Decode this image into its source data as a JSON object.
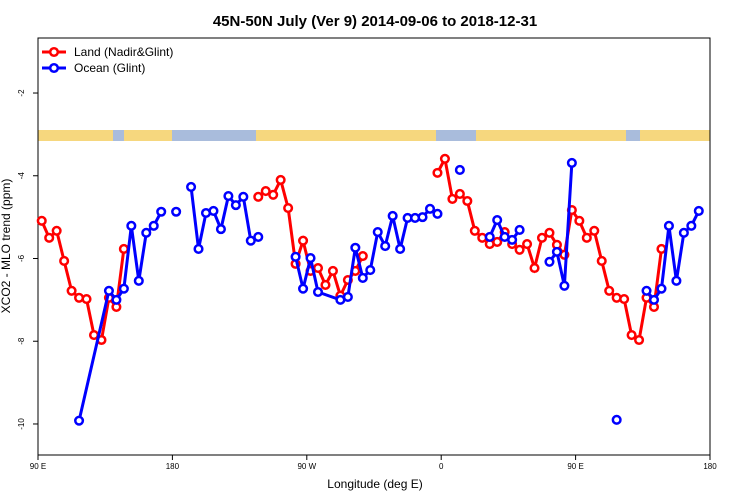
{
  "chart_data": {
    "type": "line",
    "title": "45N-50N July (Ver 9)   2014-09-06 to 2018-12-31",
    "x_label": "Longitude (deg E)",
    "y_label": "XCO2 - MLO trend (ppm)",
    "xlim": [
      90,
      540
    ],
    "ylim": [
      -10.75,
      -0.67
    ],
    "xticks": [
      {
        "value": 90,
        "label": "90 E"
      },
      180,
      {
        "value": 270,
        "label": "90 W"
      },
      {
        "value": 360,
        "label": "0"
      },
      {
        "value": 450,
        "label": "90 E"
      },
      {
        "value": 540,
        "label": "180"
      }
    ],
    "yticks": [
      -2,
      -4,
      -6,
      -8,
      -10
    ],
    "legend": "top-left",
    "series": [
      {
        "name": "Land (Nadir&Glint)",
        "color": "#ff0000",
        "x": [
          92.5,
          97.5,
          102.5,
          107.5,
          112.5,
          117.5,
          122.5,
          127.5,
          132.5,
          137.5,
          142.5,
          147.5,
          null,
          237.5,
          242.5,
          247.5,
          252.5,
          257.5,
          262.5,
          267.5,
          272.5,
          277.5,
          282.5,
          287.5,
          292.5,
          297.5,
          302.5,
          307.5,
          null,
          357.5,
          362.5,
          367.5,
          372.5,
          377.5,
          382.5,
          387.5,
          392.5,
          397.5,
          402.5,
          407.5,
          412.5,
          417.5,
          422.5,
          427.5,
          432.5,
          437.5,
          442.5,
          447.5,
          452.5,
          457.5,
          462.5,
          467.5,
          472.5,
          477.5,
          482.5,
          487.5,
          492.5,
          497.5,
          502.5,
          507.5
        ],
        "values": [
          -5.09,
          -5.5,
          -5.33,
          -6.06,
          -6.78,
          -6.95,
          -6.98,
          -7.85,
          -7.97,
          -6.95,
          -7.17,
          -5.77,
          null,
          -4.51,
          -4.37,
          -4.46,
          -4.1,
          -4.78,
          -6.13,
          -5.57,
          -6.3,
          -6.23,
          -6.64,
          -6.3,
          -6.9,
          -6.52,
          -6.3,
          -5.94,
          null,
          -3.93,
          -3.59,
          -4.56,
          -4.44,
          -4.61,
          -5.33,
          -5.5,
          -5.65,
          -5.6,
          -5.36,
          -5.65,
          -5.79,
          -5.65,
          -6.23,
          -5.5,
          -5.38,
          -5.67,
          -5.91,
          -4.83,
          -5.09,
          -5.5,
          -5.33,
          -6.06,
          -6.78,
          -6.95,
          -6.98,
          -7.85,
          -7.97,
          -6.95,
          -7.17,
          -5.77
        ]
      },
      {
        "name": "Ocean (Glint)",
        "color": "#0000ff",
        "x": [
          117.5,
          137.5,
          142.5,
          147.5,
          152.5,
          157.5,
          162.5,
          167.5,
          172.5,
          null,
          182.5,
          null,
          192.5,
          197.5,
          202.5,
          207.5,
          212.5,
          217.5,
          222.5,
          227.5,
          232.5,
          237.5,
          null,
          262.5,
          267.5,
          272.5,
          277.5,
          292.5,
          297.5,
          302.5,
          307.5,
          312.5,
          317.5,
          322.5,
          327.5,
          332.5,
          337.5,
          342.5,
          347.5,
          352.5,
          357.5,
          null,
          372.5,
          null,
          392.5,
          397.5,
          402.5,
          407.5,
          412.5,
          null,
          432.5,
          437.5,
          442.5,
          447.5,
          null,
          477.5,
          null,
          497.5,
          502.5,
          507.5,
          512.5,
          517.5,
          522.5,
          527.5,
          532.5
        ],
        "values": [
          -9.92,
          -6.78,
          -7.0,
          -6.73,
          -5.21,
          -6.54,
          -5.38,
          -5.21,
          -4.87,
          null,
          -4.87,
          null,
          -4.27,
          -5.77,
          -4.9,
          -4.85,
          -5.29,
          -4.49,
          -4.71,
          -4.51,
          -5.57,
          -5.48,
          null,
          -5.96,
          -6.73,
          -5.99,
          -6.81,
          -7.0,
          -6.93,
          -5.74,
          -6.47,
          -6.28,
          -5.36,
          -5.7,
          -4.97,
          -5.77,
          -5.02,
          -5.02,
          -5.0,
          -4.8,
          -4.92,
          null,
          -3.86,
          null,
          -5.48,
          -5.07,
          -5.48,
          -5.55,
          -5.31,
          null,
          -6.08,
          -5.84,
          -6.66,
          -3.69,
          null,
          -9.9,
          null,
          -6.78,
          -7.0,
          -6.73,
          -5.21,
          -6.54,
          -5.38,
          -5.21,
          -4.85
        ]
      }
    ]
  }
}
